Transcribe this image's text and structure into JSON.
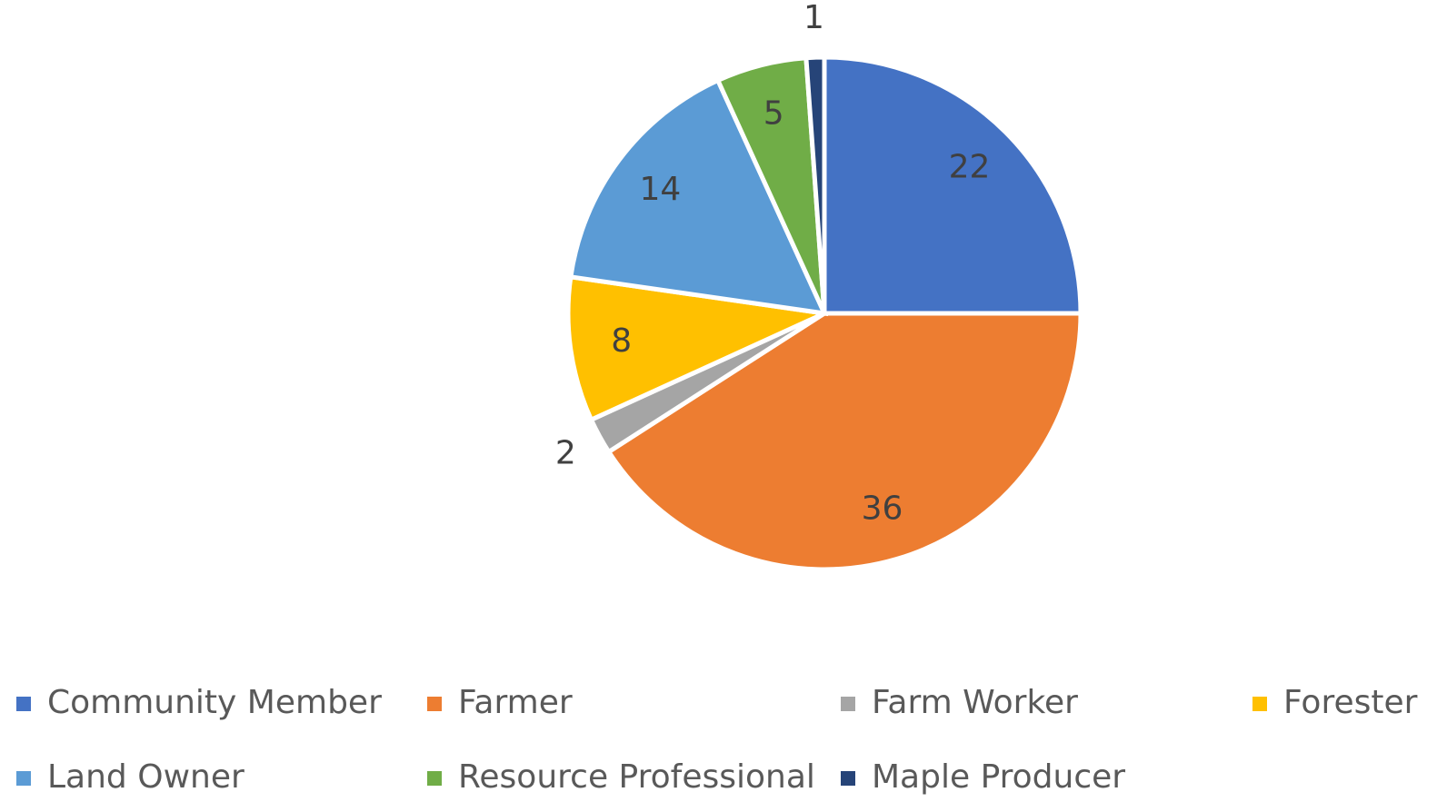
{
  "chart_data": {
    "type": "pie",
    "categories": [
      "Community Member",
      "Farmer",
      "Farm Worker",
      "Forester",
      "Land Owner",
      "Resource Professional",
      "Maple Producer"
    ],
    "values": [
      22,
      36,
      2,
      8,
      14,
      5,
      1
    ],
    "colors": [
      "#4472c4",
      "#ed7d31",
      "#a5a5a5",
      "#ffc000",
      "#5b9bd5",
      "#70ad47",
      "#264478"
    ],
    "legend": "bottom"
  }
}
